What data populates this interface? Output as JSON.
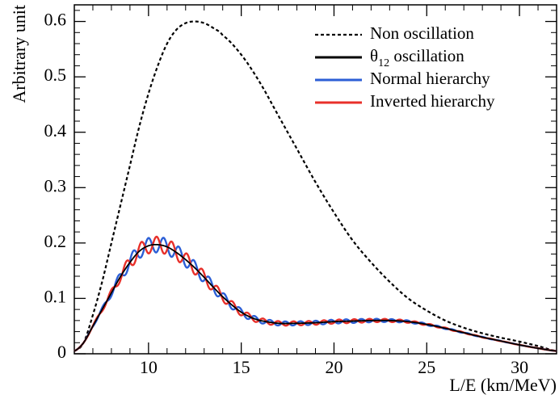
{
  "chart_data": {
    "type": "line",
    "ylabel": "Arbitrary unit",
    "xlabel": "L/E (km/MeV)",
    "xlim": [
      6,
      32
    ],
    "ylim": [
      0,
      0.63
    ],
    "x_ticks": [
      10,
      15,
      20,
      25,
      30
    ],
    "x_tick_labels": [
      "10",
      "15",
      "20",
      "25",
      "30"
    ],
    "y_ticks": [
      0,
      0.1,
      0.2,
      0.3,
      0.4,
      0.5,
      0.6
    ],
    "y_tick_labels": [
      "0",
      "0.1",
      "0.2",
      "0.3",
      "0.4",
      "0.5",
      "0.6"
    ],
    "grid": false,
    "legend_position": "top-right",
    "series": [
      {
        "name": "Non oscillation",
        "name_prefix": "",
        "name_subscript": "",
        "color": "#000000",
        "style": "dashed",
        "x": [
          6,
          6.5,
          7,
          7.5,
          8,
          8.5,
          9,
          9.5,
          10,
          10.5,
          11,
          11.5,
          12,
          12.5,
          13,
          13.5,
          14,
          15,
          16,
          17,
          18,
          19,
          20,
          21,
          22,
          23,
          24,
          25,
          26,
          27,
          28,
          29,
          30,
          31,
          32
        ],
        "y": [
          0.005,
          0.02,
          0.07,
          0.13,
          0.2,
          0.27,
          0.34,
          0.41,
          0.47,
          0.52,
          0.56,
          0.585,
          0.597,
          0.6,
          0.597,
          0.588,
          0.575,
          0.54,
          0.49,
          0.43,
          0.37,
          0.31,
          0.255,
          0.205,
          0.165,
          0.13,
          0.1,
          0.078,
          0.06,
          0.047,
          0.037,
          0.029,
          0.022,
          0.014,
          0.005
        ]
      },
      {
        "name": "oscillation",
        "name_prefix": "θ",
        "name_subscript": "12",
        "color": "#000000",
        "style": "solid",
        "x": [
          6,
          6.5,
          7,
          7.5,
          8,
          8.5,
          9,
          9.5,
          10,
          10.5,
          11,
          11.5,
          12,
          12.5,
          13,
          13.5,
          14,
          14.5,
          15,
          15.5,
          16,
          17,
          18,
          19,
          20,
          21,
          22,
          23,
          24,
          25,
          26,
          27,
          28,
          29,
          30,
          31,
          32
        ],
        "y": [
          0.005,
          0.02,
          0.05,
          0.08,
          0.11,
          0.14,
          0.165,
          0.185,
          0.195,
          0.197,
          0.193,
          0.183,
          0.17,
          0.155,
          0.138,
          0.12,
          0.103,
          0.088,
          0.075,
          0.066,
          0.06,
          0.055,
          0.055,
          0.056,
          0.058,
          0.059,
          0.06,
          0.06,
          0.058,
          0.053,
          0.046,
          0.038,
          0.03,
          0.023,
          0.016,
          0.01,
          0.005
        ]
      },
      {
        "name": "Normal hierarchy",
        "name_prefix": "",
        "name_subscript": "",
        "color": "#2c5fd6",
        "style": "solid",
        "oscillation_amplitude": 0.014,
        "oscillation_period": 0.82,
        "oscillation_phase": 0.4
      },
      {
        "name": "Inverted hierarchy",
        "name_prefix": "",
        "name_subscript": "",
        "color": "#e8302a",
        "style": "solid",
        "oscillation_amplitude": 0.014,
        "oscillation_period": 0.82,
        "oscillation_phase": 3.3
      }
    ]
  }
}
